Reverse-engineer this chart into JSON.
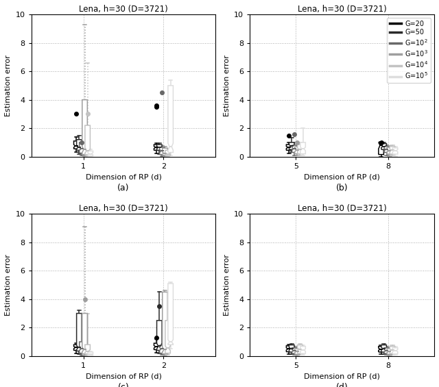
{
  "title": "Lena, h=30 (D=3721)",
  "xlabel": "Dimension of RP (d)",
  "ylabel": "Estimation error",
  "ylim": [
    0,
    10
  ],
  "yticks": [
    0,
    2,
    4,
    6,
    8,
    10
  ],
  "colors": [
    "#000000",
    "#2a2a2a",
    "#686868",
    "#9e9e9e",
    "#c3c3c3",
    "#dedede"
  ],
  "legend_labels": [
    "G=20",
    "G=50",
    "G=10$^2$",
    "G=10$^3$",
    "G=10$^4$",
    "G=10$^5$"
  ],
  "subplot_labels": [
    "(a)",
    "(b)",
    "(c)",
    "(d)"
  ],
  "panels": [
    {
      "xtick_positions": [
        1,
        2
      ],
      "xtick_labels": [
        "1",
        "2"
      ],
      "xlim": [
        0.35,
        2.65
      ],
      "groups": [
        {
          "x": 1,
          "boxes": [
            {
              "q1": 0.55,
              "median": 0.75,
              "q3": 1.1,
              "whisker_low": 0.3,
              "whisker_high": 1.4,
              "fliers_high": [
                3.0
              ],
              "fliers_low": [],
              "notch_low": 0.65,
              "notch_high": 0.85,
              "whisker_dashed": false
            },
            {
              "q1": 0.45,
              "median": 0.65,
              "q3": 1.2,
              "whisker_low": 0.2,
              "whisker_high": 1.5,
              "fliers_high": [],
              "fliers_low": [],
              "notch_low": 0.55,
              "notch_high": 0.75,
              "whisker_dashed": false
            },
            {
              "q1": 0.25,
              "median": 0.55,
              "q3": 1.0,
              "whisker_low": 0.1,
              "whisker_high": 1.1,
              "fliers_high": [
                1.0
              ],
              "fliers_low": [],
              "notch_low": 0.45,
              "notch_high": 0.65,
              "whisker_dashed": false
            },
            {
              "q1": 0.15,
              "median": 0.5,
              "q3": 4.0,
              "whisker_low": 0.05,
              "whisker_high": 9.3,
              "fliers_high": [],
              "fliers_low": [],
              "notch_low": 0.3,
              "notch_high": 0.7,
              "whisker_dashed": true
            },
            {
              "q1": 0.15,
              "median": 0.4,
              "q3": 2.2,
              "whisker_low": 0.05,
              "whisker_high": 6.6,
              "fliers_high": [
                3.0
              ],
              "fliers_low": [],
              "notch_low": 0.25,
              "notch_high": 0.55,
              "whisker_dashed": true
            },
            {
              "q1": 0.05,
              "median": 0.2,
              "q3": 0.4,
              "whisker_low": 0.02,
              "whisker_high": 0.5,
              "fliers_high": [],
              "fliers_low": [],
              "notch_low": 0.12,
              "notch_high": 0.28,
              "whisker_dashed": false
            }
          ]
        },
        {
          "x": 2,
          "boxes": [
            {
              "q1": 0.45,
              "median": 0.65,
              "q3": 0.85,
              "whisker_low": 0.25,
              "whisker_high": 0.95,
              "fliers_high": [
                3.5,
                3.6
              ],
              "fliers_low": [],
              "notch_low": 0.57,
              "notch_high": 0.73,
              "whisker_dashed": false
            },
            {
              "q1": 0.45,
              "median": 0.65,
              "q3": 0.85,
              "whisker_low": 0.2,
              "whisker_high": 0.95,
              "fliers_high": [],
              "fliers_low": [],
              "notch_low": 0.57,
              "notch_high": 0.73,
              "whisker_dashed": false
            },
            {
              "q1": 0.15,
              "median": 0.4,
              "q3": 0.65,
              "whisker_low": 0.05,
              "whisker_high": 0.75,
              "fliers_high": [
                4.5
              ],
              "fliers_low": [],
              "notch_low": 0.3,
              "notch_high": 0.5,
              "whisker_dashed": false
            },
            {
              "q1": 0.1,
              "median": 0.25,
              "q3": 0.6,
              "whisker_low": 0.03,
              "whisker_high": 0.7,
              "fliers_high": [],
              "fliers_low": [],
              "notch_low": 0.18,
              "notch_high": 0.32,
              "whisker_dashed": false
            },
            {
              "q1": 0.08,
              "median": 0.2,
              "q3": 0.45,
              "whisker_low": 0.03,
              "whisker_high": 0.55,
              "fliers_high": [],
              "fliers_low": [],
              "notch_low": 0.14,
              "notch_high": 0.26,
              "whisker_dashed": false
            },
            {
              "q1": 0.3,
              "median": 0.7,
              "q3": 5.0,
              "whisker_low": 0.1,
              "whisker_high": 5.4,
              "fliers_high": [],
              "fliers_low": [],
              "notch_low": 0.45,
              "notch_high": 0.95,
              "whisker_dashed": false
            }
          ]
        }
      ]
    },
    {
      "xtick_positions": [
        5,
        8
      ],
      "xtick_labels": [
        "5",
        "8"
      ],
      "xlim": [
        3.5,
        9.5
      ],
      "show_legend": true,
      "groups": [
        {
          "x": 5,
          "boxes": [
            {
              "q1": 0.45,
              "median": 0.65,
              "q3": 0.85,
              "whisker_low": 0.25,
              "whisker_high": 1.0,
              "fliers_high": [
                1.5
              ],
              "fliers_low": [],
              "notch_low": 0.57,
              "notch_high": 0.73,
              "whisker_dashed": false
            },
            {
              "q1": 0.5,
              "median": 0.75,
              "q3": 1.0,
              "whisker_low": 0.3,
              "whisker_high": 1.35,
              "fliers_high": [],
              "fliers_low": [],
              "notch_low": 0.65,
              "notch_high": 0.85,
              "whisker_dashed": false
            },
            {
              "q1": 0.3,
              "median": 0.55,
              "q3": 0.8,
              "whisker_low": 0.1,
              "whisker_high": 1.0,
              "fliers_high": [
                1.6
              ],
              "fliers_low": [],
              "notch_low": 0.45,
              "notch_high": 0.65,
              "whisker_dashed": false
            },
            {
              "q1": 0.2,
              "median": 0.45,
              "q3": 0.7,
              "whisker_low": 0.07,
              "whisker_high": 0.85,
              "fliers_high": [
                1.0
              ],
              "fliers_low": [],
              "notch_low": 0.35,
              "notch_high": 0.55,
              "whisker_dashed": false
            },
            {
              "q1": 0.2,
              "median": 0.5,
              "q3": 0.85,
              "whisker_low": 0.07,
              "whisker_high": 1.0,
              "fliers_high": [],
              "fliers_low": [],
              "notch_low": 0.4,
              "notch_high": 0.6,
              "whisker_dashed": false
            },
            {
              "q1": 0.2,
              "median": 0.55,
              "q3": 1.0,
              "whisker_low": 0.1,
              "whisker_high": 2.0,
              "fliers_high": [],
              "fliers_low": [],
              "notch_low": 0.42,
              "notch_high": 0.68,
              "whisker_dashed": false
            }
          ]
        },
        {
          "x": 8,
          "boxes": [
            {
              "q1": 0.15,
              "median": 0.8,
              "q3": 1.0,
              "whisker_low": 0.0,
              "whisker_high": 1.05,
              "fliers_high": [
                1.0
              ],
              "fliers_low": [],
              "notch_low": 0.55,
              "notch_high": 1.0,
              "whisker_dashed": false
            },
            {
              "q1": 0.5,
              "median": 0.72,
              "q3": 0.92,
              "whisker_low": 0.3,
              "whisker_high": 1.0,
              "fliers_high": [],
              "fliers_low": [],
              "notch_low": 0.64,
              "notch_high": 0.8,
              "whisker_dashed": false
            },
            {
              "q1": 0.3,
              "median": 0.5,
              "q3": 0.72,
              "whisker_low": 0.1,
              "whisker_high": 0.82,
              "fliers_high": [],
              "fliers_low": [],
              "notch_low": 0.42,
              "notch_high": 0.58,
              "whisker_dashed": false
            },
            {
              "q1": 0.18,
              "median": 0.4,
              "q3": 0.65,
              "whisker_low": 0.05,
              "whisker_high": 0.75,
              "fliers_high": [],
              "fliers_low": [],
              "notch_low": 0.32,
              "notch_high": 0.48,
              "whisker_dashed": false
            },
            {
              "q1": 0.18,
              "median": 0.45,
              "q3": 0.72,
              "whisker_low": 0.07,
              "whisker_high": 0.82,
              "fliers_high": [],
              "fliers_low": [],
              "notch_low": 0.37,
              "notch_high": 0.53,
              "whisker_dashed": false
            },
            {
              "q1": 0.18,
              "median": 0.42,
              "q3": 0.62,
              "whisker_low": 0.05,
              "whisker_high": 0.72,
              "fliers_high": [],
              "fliers_low": [],
              "notch_low": 0.34,
              "notch_high": 0.5,
              "whisker_dashed": false
            }
          ]
        }
      ]
    },
    {
      "xtick_positions": [
        1,
        2
      ],
      "xtick_labels": [
        "1",
        "2"
      ],
      "xlim": [
        0.35,
        2.65
      ],
      "groups": [
        {
          "x": 1,
          "boxes": [
            {
              "q1": 0.4,
              "median": 0.6,
              "q3": 0.8,
              "whisker_low": 0.2,
              "whisker_high": 0.9,
              "fliers_high": [],
              "fliers_low": [],
              "notch_low": 0.52,
              "notch_high": 0.68,
              "whisker_dashed": false
            },
            {
              "q1": 0.35,
              "median": 0.6,
              "q3": 3.0,
              "whisker_low": 0.15,
              "whisker_high": 3.2,
              "fliers_high": [],
              "fliers_low": [],
              "notch_low": 0.45,
              "notch_high": 0.75,
              "whisker_dashed": false
            },
            {
              "q1": 0.2,
              "median": 0.5,
              "q3": 1.0,
              "whisker_low": 0.05,
              "whisker_high": 1.1,
              "fliers_high": [],
              "fliers_low": [],
              "notch_low": 0.4,
              "notch_high": 0.6,
              "whisker_dashed": false
            },
            {
              "q1": 0.15,
              "median": 0.45,
              "q3": 3.0,
              "whisker_low": 0.05,
              "whisker_high": 9.1,
              "fliers_high": [
                4.0
              ],
              "fliers_low": [],
              "notch_low": 0.3,
              "notch_high": 0.6,
              "whisker_dashed": true
            },
            {
              "q1": 0.15,
              "median": 0.35,
              "q3": 0.8,
              "whisker_low": 0.04,
              "whisker_high": 3.0,
              "fliers_high": [],
              "fliers_low": [],
              "notch_low": 0.25,
              "notch_high": 0.45,
              "whisker_dashed": false
            },
            {
              "q1": 0.04,
              "median": 0.12,
              "q3": 0.28,
              "whisker_low": 0.02,
              "whisker_high": 0.32,
              "fliers_high": [],
              "fliers_low": [],
              "notch_low": 0.08,
              "notch_high": 0.16,
              "whisker_dashed": false
            }
          ]
        },
        {
          "x": 2,
          "boxes": [
            {
              "q1": 0.45,
              "median": 0.65,
              "q3": 0.9,
              "whisker_low": 0.25,
              "whisker_high": 1.2,
              "fliers_high": [
                1.3
              ],
              "fliers_low": [],
              "notch_low": 0.56,
              "notch_high": 0.74,
              "whisker_dashed": false
            },
            {
              "q1": 0.4,
              "median": 0.7,
              "q3": 2.5,
              "whisker_low": 0.2,
              "whisker_high": 4.5,
              "fliers_high": [
                3.5
              ],
              "fliers_low": [],
              "notch_low": 0.5,
              "notch_high": 0.9,
              "whisker_dashed": false
            },
            {
              "q1": 0.2,
              "median": 0.5,
              "q3": 0.75,
              "whisker_low": 0.08,
              "whisker_high": 0.85,
              "fliers_high": [],
              "fliers_low": [],
              "notch_low": 0.4,
              "notch_high": 0.6,
              "whisker_dashed": false
            },
            {
              "q1": 0.15,
              "median": 0.45,
              "q3": 4.5,
              "whisker_low": 0.05,
              "whisker_high": 4.6,
              "fliers_high": [],
              "fliers_low": [],
              "notch_low": 0.28,
              "notch_high": 0.62,
              "whisker_dashed": false
            },
            {
              "q1": 0.2,
              "median": 0.55,
              "q3": 2.5,
              "whisker_low": 0.08,
              "whisker_high": 3.5,
              "fliers_high": [],
              "fliers_low": [],
              "notch_low": 0.38,
              "notch_high": 0.72,
              "whisker_dashed": false
            },
            {
              "q1": 0.8,
              "median": 1.0,
              "q3": 5.1,
              "whisker_low": 0.5,
              "whisker_high": 5.2,
              "fliers_high": [],
              "fliers_low": [],
              "notch_low": 0.85,
              "notch_high": 1.15,
              "whisker_dashed": false
            }
          ]
        }
      ]
    },
    {
      "xtick_positions": [
        5,
        8
      ],
      "xtick_labels": [
        "5",
        "8"
      ],
      "xlim": [
        3.5,
        9.5
      ],
      "groups": [
        {
          "x": 5,
          "boxes": [
            {
              "q1": 0.3,
              "median": 0.5,
              "q3": 0.72,
              "whisker_low": 0.15,
              "whisker_high": 0.82,
              "fliers_high": [],
              "fliers_low": [],
              "notch_low": 0.42,
              "notch_high": 0.58,
              "whisker_dashed": false
            },
            {
              "q1": 0.28,
              "median": 0.52,
              "q3": 0.78,
              "whisker_low": 0.12,
              "whisker_high": 0.88,
              "fliers_high": [],
              "fliers_low": [],
              "notch_low": 0.43,
              "notch_high": 0.61,
              "whisker_dashed": false
            },
            {
              "q1": 0.18,
              "median": 0.38,
              "q3": 0.58,
              "whisker_low": 0.08,
              "whisker_high": 0.68,
              "fliers_high": [],
              "fliers_low": [],
              "notch_low": 0.3,
              "notch_high": 0.46,
              "whisker_dashed": false
            },
            {
              "q1": 0.12,
              "median": 0.32,
              "q3": 0.52,
              "whisker_low": 0.04,
              "whisker_high": 0.62,
              "fliers_high": [],
              "fliers_low": [],
              "notch_low": 0.24,
              "notch_high": 0.4,
              "whisker_dashed": false
            },
            {
              "q1": 0.18,
              "median": 0.48,
              "q3": 0.78,
              "whisker_low": 0.08,
              "whisker_high": 0.88,
              "fliers_high": [],
              "fliers_low": [],
              "notch_low": 0.4,
              "notch_high": 0.56,
              "whisker_dashed": false
            },
            {
              "q1": 0.18,
              "median": 0.42,
              "q3": 0.68,
              "whisker_low": 0.08,
              "whisker_high": 0.78,
              "fliers_high": [],
              "fliers_low": [],
              "notch_low": 0.34,
              "notch_high": 0.5,
              "whisker_dashed": false
            }
          ]
        },
        {
          "x": 8,
          "boxes": [
            {
              "q1": 0.28,
              "median": 0.48,
              "q3": 0.68,
              "whisker_low": 0.12,
              "whisker_high": 0.78,
              "fliers_high": [],
              "fliers_low": [],
              "notch_low": 0.4,
              "notch_high": 0.56,
              "whisker_dashed": false
            },
            {
              "q1": 0.28,
              "median": 0.52,
              "q3": 0.78,
              "whisker_low": 0.12,
              "whisker_high": 0.88,
              "fliers_high": [],
              "fliers_low": [],
              "notch_low": 0.43,
              "notch_high": 0.61,
              "whisker_dashed": false
            },
            {
              "q1": 0.18,
              "median": 0.38,
              "q3": 0.58,
              "whisker_low": 0.08,
              "whisker_high": 0.68,
              "fliers_high": [],
              "fliers_low": [],
              "notch_low": 0.3,
              "notch_high": 0.46,
              "whisker_dashed": false
            },
            {
              "q1": 0.12,
              "median": 0.32,
              "q3": 0.52,
              "whisker_low": 0.04,
              "whisker_high": 0.62,
              "fliers_high": [],
              "fliers_low": [],
              "notch_low": 0.24,
              "notch_high": 0.4,
              "whisker_dashed": false
            },
            {
              "q1": 0.18,
              "median": 0.42,
              "q3": 0.68,
              "whisker_low": 0.08,
              "whisker_high": 0.78,
              "fliers_high": [],
              "fliers_low": [],
              "notch_low": 0.34,
              "notch_high": 0.5,
              "whisker_dashed": false
            },
            {
              "q1": 0.15,
              "median": 0.38,
              "q3": 0.58,
              "whisker_low": 0.07,
              "whisker_high": 0.68,
              "fliers_high": [],
              "fliers_low": [],
              "notch_low": 0.3,
              "notch_high": 0.46,
              "whisker_dashed": false
            }
          ]
        }
      ]
    }
  ]
}
